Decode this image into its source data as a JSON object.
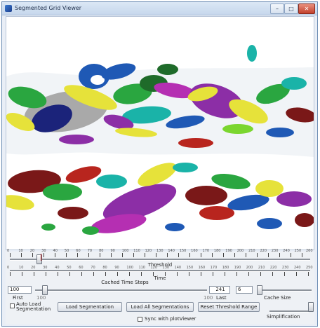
{
  "window": {
    "title": "Segmented Grid Viewer",
    "minimize": "–",
    "maximize": "□",
    "close": "✕"
  },
  "threshold_slider": {
    "label": "Threshold",
    "tick_labels": [
      "0",
      "10",
      "20",
      "30",
      "40",
      "50",
      "60",
      "70",
      "80",
      "90",
      "100",
      "110",
      "120",
      "130",
      "140",
      "150",
      "160",
      "170",
      "180",
      "190",
      "200",
      "210",
      "220",
      "230",
      "240",
      "250",
      "260"
    ],
    "thumb_value": 40
  },
  "cached_time_steps": {
    "label": "Cached Time Steps"
  },
  "time_slider": {
    "label": "Time",
    "tick_labels": [
      "0",
      "10",
      "20",
      "30",
      "40",
      "50",
      "60",
      "70",
      "80",
      "90",
      "100",
      "110",
      "120",
      "130",
      "140",
      "150",
      "160",
      "170",
      "180",
      "190",
      "200",
      "210",
      "220",
      "230",
      "240",
      "250"
    ]
  },
  "range": {
    "first_value": "100",
    "last_value": "241",
    "first_label": "First",
    "last_label": "Last",
    "first_min": "100",
    "first_max": "100"
  },
  "cache": {
    "value": "6",
    "label": "Cache Size"
  },
  "simplification": {
    "label": "Simplification"
  },
  "buttons": {
    "auto_load": "Auto Load Segmentation",
    "load_segmentation": "Load Segmentation",
    "load_all": "Load All Segmentations",
    "reset_threshold": "Reset Threshold Range",
    "sync": "Sync with plotViewer"
  },
  "colors": {
    "blue": "#1f59b5",
    "navy": "#1b237a",
    "yellow": "#e6e23a",
    "green": "#2aa640",
    "teal": "#1ab3a8",
    "purple": "#8c2ea6",
    "magenta": "#b52fb2",
    "maroon": "#7a1818",
    "red": "#b8251e",
    "gray": "#a9a9a9",
    "lime": "#7bd62f",
    "dark_green": "#1f6b2a"
  }
}
